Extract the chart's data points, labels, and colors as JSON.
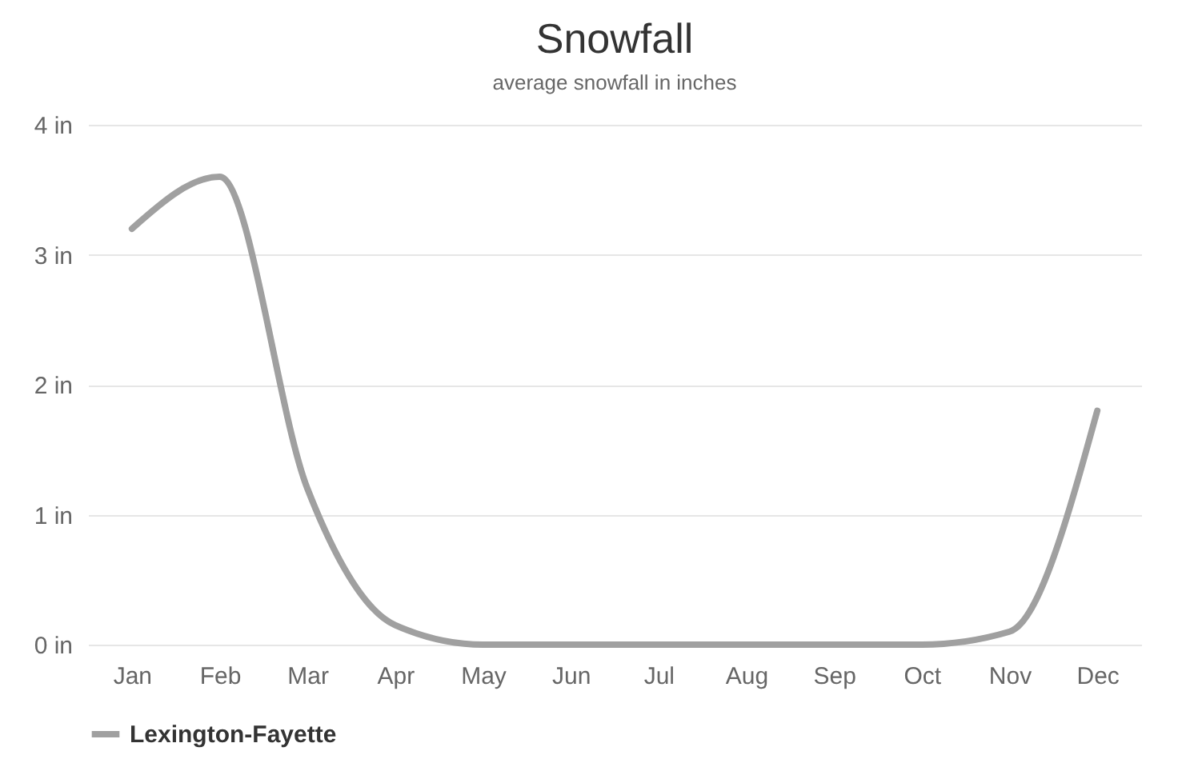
{
  "chart_data": {
    "type": "line",
    "title": "Snowfall",
    "subtitle": "average snowfall in inches",
    "categories": [
      "Jan",
      "Feb",
      "Mar",
      "Apr",
      "May",
      "Jun",
      "Jul",
      "Aug",
      "Sep",
      "Oct",
      "Nov",
      "Dec"
    ],
    "series": [
      {
        "name": "Lexington-Fayette",
        "color": "#a0a0a0",
        "values": [
          3.2,
          3.6,
          1.2,
          0.15,
          0,
          0,
          0,
          0,
          0,
          0,
          0.1,
          1.8
        ]
      }
    ],
    "ylim": [
      0,
      4
    ],
    "yticks": [
      {
        "value": 0,
        "label": "0 in"
      },
      {
        "value": 1,
        "label": "1 in"
      },
      {
        "value": 2,
        "label": "2 in"
      },
      {
        "value": 3,
        "label": "3 in"
      },
      {
        "value": 4,
        "label": "4 in"
      }
    ],
    "grid": "y",
    "legend": "bottom",
    "marker": "none",
    "line_style": "solid"
  }
}
